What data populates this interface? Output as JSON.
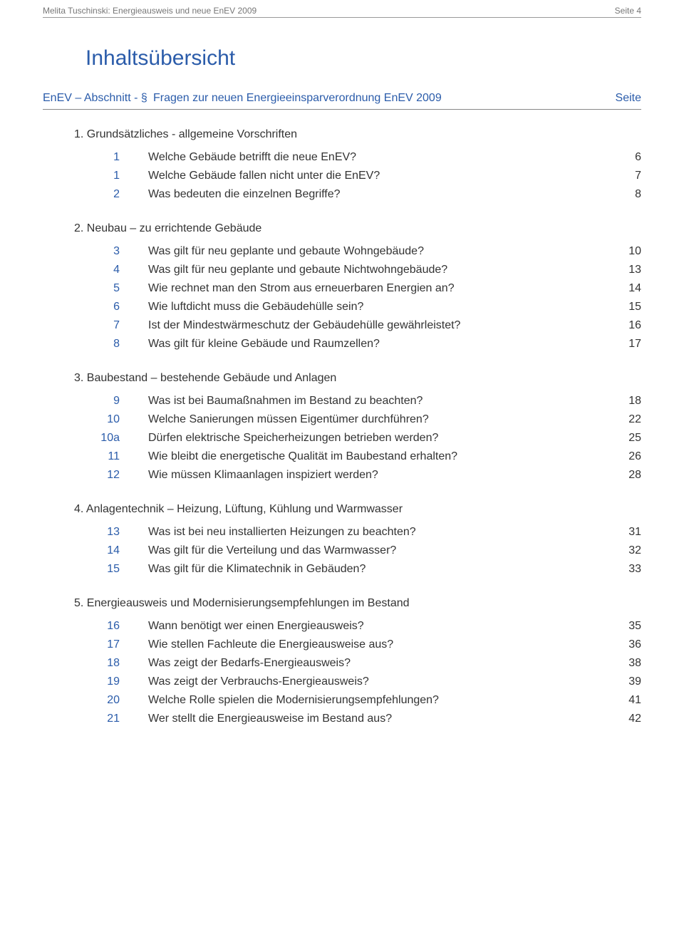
{
  "header": {
    "left": "Melita Tuschinski: Energieausweis und neue EnEV 2009",
    "right": "Seite 4"
  },
  "title": "Inhaltsübersicht",
  "subheader": {
    "left": "EnEV – Abschnitt - §",
    "mid": "Fragen zur neuen Energieeinsparverordnung EnEV 2009",
    "right": "Seite"
  },
  "sections": [
    {
      "heading": "1. Grundsätzliches - allgemeine Vorschriften",
      "rows": [
        {
          "num": "1",
          "q": "Welche Gebäude betrifft die neue EnEV?",
          "pg": "6"
        },
        {
          "num": "1",
          "q": "Welche Gebäude fallen nicht unter die EnEV?",
          "pg": "7"
        },
        {
          "num": "2",
          "q": "Was bedeuten die einzelnen Begriffe?",
          "pg": "8"
        }
      ]
    },
    {
      "heading": "2. Neubau – zu errichtende Gebäude",
      "rows": [
        {
          "num": "3",
          "q": "Was gilt für neu geplante und gebaute Wohngebäude?",
          "pg": "10"
        },
        {
          "num": "4",
          "q": "Was gilt für neu geplante und gebaute Nichtwohngebäude?",
          "pg": "13"
        },
        {
          "num": "5",
          "q": "Wie rechnet man den Strom aus erneuerbaren Energien an?",
          "pg": "14"
        },
        {
          "num": "6",
          "q": "Wie luftdicht muss die Gebäudehülle sein?",
          "pg": "15"
        },
        {
          "num": "7",
          "q": "Ist der Mindestwärmeschutz der Gebäudehülle gewährleistet?",
          "pg": "16"
        },
        {
          "num": "8",
          "q": "Was gilt für kleine Gebäude und Raumzellen?",
          "pg": "17"
        }
      ]
    },
    {
      "heading": "3. Baubestand – bestehende Gebäude und Anlagen",
      "rows": [
        {
          "num": "9",
          "q": "Was ist bei Baumaßnahmen im Bestand zu beachten?",
          "pg": "18"
        },
        {
          "num": "10",
          "q": "Welche Sanierungen müssen Eigentümer durchführen?",
          "pg": "22"
        },
        {
          "num": "10a",
          "q": "Dürfen elektrische Speicherheizungen betrieben werden?",
          "pg": "25"
        },
        {
          "num": "11",
          "q": "Wie bleibt die energetische Qualität im Baubestand erhalten?",
          "pg": "26"
        },
        {
          "num": "12",
          "q": "Wie müssen Klimaanlagen inspiziert werden?",
          "pg": "28"
        }
      ]
    },
    {
      "heading": "4. Anlagentechnik – Heizung, Lüftung, Kühlung und Warmwasser",
      "rows": [
        {
          "num": "13",
          "q": "Was ist bei neu installierten Heizungen zu beachten?",
          "pg": "31"
        },
        {
          "num": "14",
          "q": "Was gilt für die Verteilung und das Warmwasser?",
          "pg": "32"
        },
        {
          "num": "15",
          "q": "Was gilt für die Klimatechnik in Gebäuden?",
          "pg": "33"
        }
      ]
    },
    {
      "heading": "5. Energieausweis und Modernisierungsempfehlungen im Bestand",
      "rows": [
        {
          "num": "16",
          "q": "Wann benötigt wer einen Energieausweis?",
          "pg": "35"
        },
        {
          "num": "17",
          "q": "Wie stellen Fachleute die Energieausweise aus?",
          "pg": "36"
        },
        {
          "num": "18",
          "q": "Was zeigt der Bedarfs-Energieausweis?",
          "pg": "38"
        },
        {
          "num": "19",
          "q": "Was zeigt der Verbrauchs-Energieausweis?",
          "pg": "39"
        },
        {
          "num": "20",
          "q": "Welche Rolle spielen die Modernisierungsempfehlungen?",
          "pg": "41"
        },
        {
          "num": "21",
          "q": "Wer stellt die Energieausweise im Bestand aus?",
          "pg": "42"
        }
      ]
    }
  ]
}
